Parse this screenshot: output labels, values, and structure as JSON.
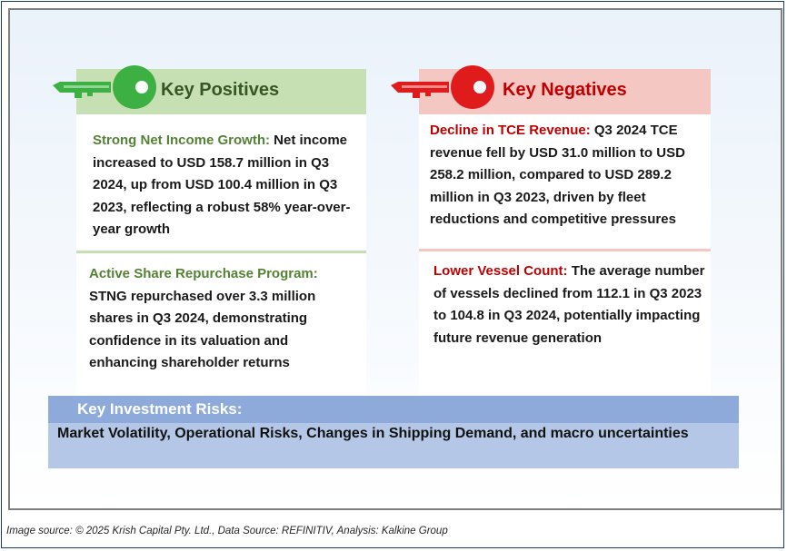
{
  "positives": {
    "title": "Key Positives",
    "items": [
      {
        "lead": "Strong Net Income Growth:",
        "text": " Net income increased to USD 158.7 million in Q3 2024, up from USD 100.4 million in Q3 2023, reflecting a robust 58% year-over-year growth"
      },
      {
        "lead": "Active Share Repurchase Program:",
        "text": " STNG repurchased over 3.3 million shares in Q3 2024, demonstrating confidence in its valuation and enhancing shareholder returns"
      }
    ]
  },
  "negatives": {
    "title": "Key Negatives",
    "items": [
      {
        "lead": "Decline in TCE Revenue:",
        "text": " Q3 2024 TCE revenue fell by USD 31.0 million to USD 258.2 million, compared to USD 289.2 million in Q3 2023, driven by fleet reductions and competitive pressures"
      },
      {
        "lead": "Lower Vessel Count:",
        "text": " The average number of vessels declined from 112.1 in Q3 2023 to 104.8 in Q3 2024, potentially impacting future revenue generation"
      }
    ]
  },
  "risks": {
    "title": "Key Investment Risks:",
    "text": "Market Volatility, Operational Risks, Changes in Shipping Demand, and macro uncertainties"
  },
  "footer": "Image source: © 2025 Krish Capital Pty. Ltd., Data Source: REFINITIV, Analysis: Kalkine Group",
  "icons": {
    "positive": "key-icon",
    "negative": "key-icon"
  },
  "colors": {
    "positive_header": "#c6e0b4",
    "positive_key": "#3cb043",
    "negative_header": "#f4c7c3",
    "negative_key": "#e01b1b",
    "risk_header": "#8eaadb",
    "risk_body": "#b4c7e7"
  }
}
